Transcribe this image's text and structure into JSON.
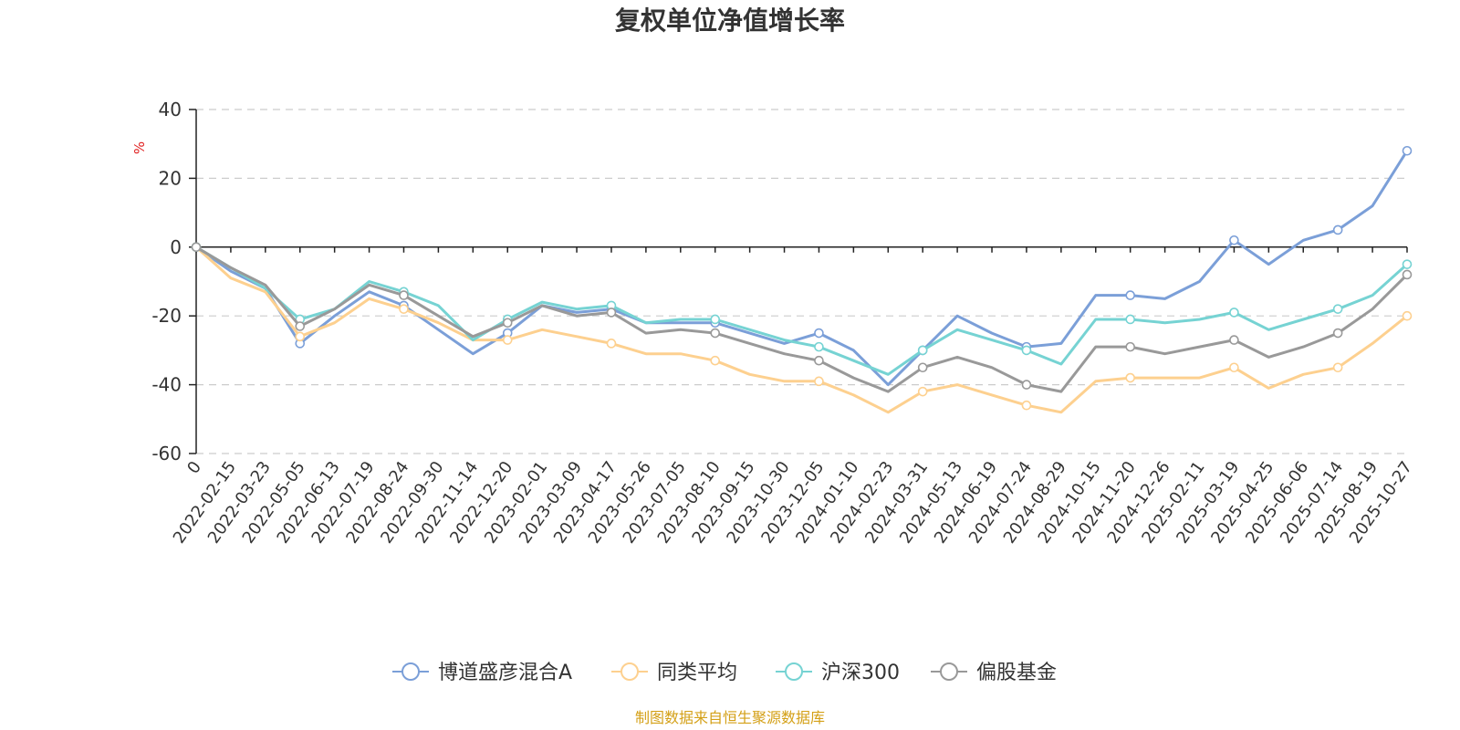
{
  "chart_data": {
    "type": "line",
    "title": "复权单位净值增长率",
    "ylabel": "%",
    "ylim": [
      -60,
      40
    ],
    "yticks": [
      "40",
      "20",
      "0",
      "-20",
      "-40",
      "-60"
    ],
    "categories": [
      "0",
      "2022-02-15",
      "2022-03-23",
      "2022-05-05",
      "2022-06-13",
      "2022-07-19",
      "2022-08-24",
      "2022-09-30",
      "2022-11-14",
      "2022-12-20",
      "2023-02-01",
      "2023-03-09",
      "2023-04-17",
      "2023-05-26",
      "2023-07-05",
      "2023-08-10",
      "2023-09-15",
      "2023-10-30",
      "2023-12-05",
      "2024-01-10",
      "2024-02-23",
      "2024-03-31",
      "2024-05-13",
      "2024-06-19",
      "2024-07-24",
      "2024-08-29",
      "2024-10-15",
      "2024-11-20",
      "2024-12-26",
      "2025-02-11",
      "2025-03-19",
      "2025-04-25",
      "2025-06-06",
      "2025-07-14",
      "2025-08-19",
      "2025-10-27"
    ],
    "series": [
      {
        "name": "博道盛彦混合A",
        "color": "#7b9fd8",
        "values": [
          0,
          -7,
          -12,
          -28,
          -20,
          -13,
          -17,
          -24,
          -31,
          -25,
          -17,
          -19,
          -18,
          -22,
          -22,
          -22,
          -25,
          -28,
          -25,
          -30,
          -40,
          -30,
          -20,
          -25,
          -29,
          -28,
          -14,
          -14,
          -15,
          -10,
          2,
          -5,
          2,
          5,
          12,
          28
        ]
      },
      {
        "name": "同类平均",
        "color": "#fdd08f",
        "values": [
          0,
          -9,
          -13,
          -26,
          -22,
          -15,
          -18,
          -22,
          -27,
          -27,
          -24,
          -26,
          -28,
          -31,
          -31,
          -33,
          -37,
          -39,
          -39,
          -43,
          -48,
          -42,
          -40,
          -43,
          -46,
          -48,
          -39,
          -38,
          -38,
          -38,
          -35,
          -41,
          -37,
          -35,
          -28,
          -20
        ]
      },
      {
        "name": "沪深300",
        "color": "#76d3d3",
        "values": [
          0,
          -6,
          -12,
          -21,
          -18,
          -10,
          -13,
          -17,
          -27,
          -21,
          -16,
          -18,
          -17,
          -22,
          -21,
          -21,
          -24,
          -27,
          -29,
          -33,
          -37,
          -30,
          -24,
          -27,
          -30,
          -34,
          -21,
          -21,
          -22,
          -21,
          -19,
          -24,
          -21,
          -18,
          -14,
          -5
        ]
      },
      {
        "name": "偏股基金",
        "color": "#999999",
        "values": [
          0,
          -6,
          -11,
          -23,
          -18,
          -11,
          -14,
          -20,
          -26,
          -22,
          -17,
          -20,
          -19,
          -25,
          -24,
          -25,
          -28,
          -31,
          -33,
          -38,
          -42,
          -35,
          -32,
          -35,
          -40,
          -42,
          -29,
          -29,
          -31,
          -29,
          -27,
          -32,
          -29,
          -25,
          -18,
          -8
        ]
      }
    ]
  },
  "legend": [
    {
      "label": "博道盛彦混合A",
      "color": "#7b9fd8"
    },
    {
      "label": "同类平均",
      "color": "#fdd08f"
    },
    {
      "label": "沪深300",
      "color": "#76d3d3"
    },
    {
      "label": "偏股基金",
      "color": "#999999"
    }
  ],
  "unit_label": "%",
  "unit_color": "#e02020",
  "source_text": "制图数据来自恒生聚源数据库",
  "source_color": "#d4a017"
}
